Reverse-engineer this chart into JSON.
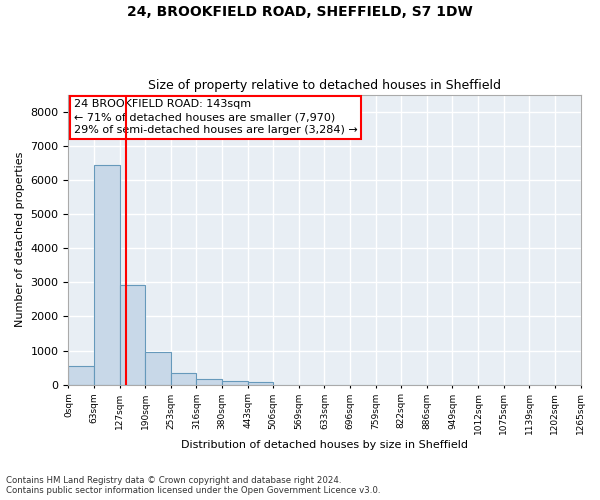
{
  "title1": "24, BROOKFIELD ROAD, SHEFFIELD, S7 1DW",
  "title2": "Size of property relative to detached houses in Sheffield",
  "xlabel": "Distribution of detached houses by size in Sheffield",
  "ylabel": "Number of detached properties",
  "footer1": "Contains HM Land Registry data © Crown copyright and database right 2024.",
  "footer2": "Contains public sector information licensed under the Open Government Licence v3.0.",
  "bin_labels": [
    "0sqm",
    "63sqm",
    "127sqm",
    "190sqm",
    "253sqm",
    "316sqm",
    "380sqm",
    "443sqm",
    "506sqm",
    "569sqm",
    "633sqm",
    "696sqm",
    "759sqm",
    "822sqm",
    "886sqm",
    "949sqm",
    "1012sqm",
    "1075sqm",
    "1139sqm",
    "1202sqm",
    "1265sqm"
  ],
  "bar_values": [
    550,
    6440,
    2930,
    970,
    340,
    160,
    110,
    70,
    0,
    0,
    0,
    0,
    0,
    0,
    0,
    0,
    0,
    0,
    0,
    0
  ],
  "bar_color": "#c8d8e8",
  "bar_edge_color": "#6699bb",
  "bg_color": "#e8eef4",
  "grid_color": "#ffffff",
  "property_label": "24 BROOKFIELD ROAD: 143sqm",
  "annotation_line1": "← 71% of detached houses are smaller (7,970)",
  "annotation_line2": "29% of semi-detached houses are larger (3,284) →",
  "ylim": [
    0,
    8500
  ],
  "yticks": [
    0,
    1000,
    2000,
    3000,
    4000,
    5000,
    6000,
    7000,
    8000
  ],
  "vline_x": 2.25
}
